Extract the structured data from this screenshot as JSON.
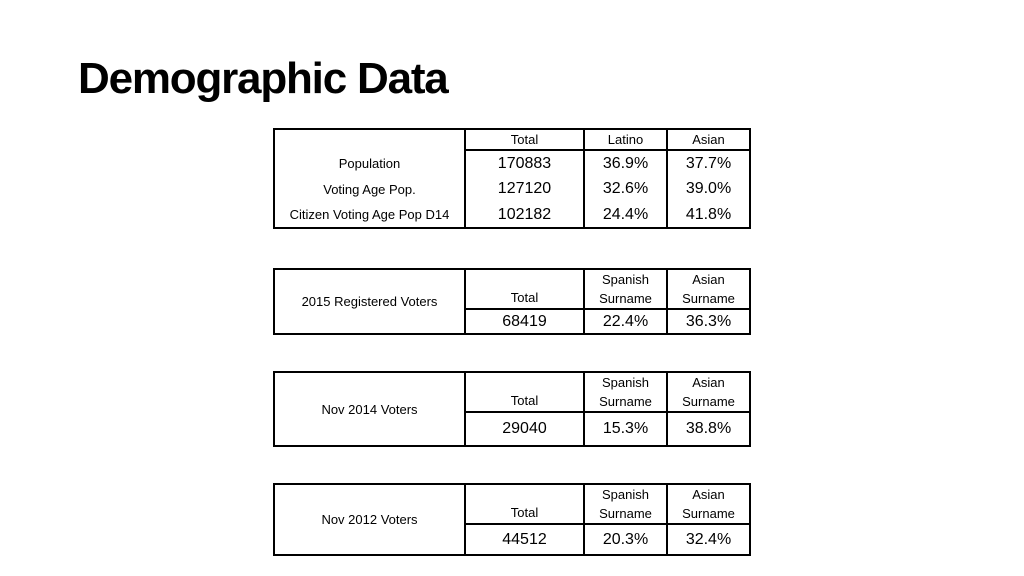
{
  "title": "Demographic Data",
  "table1": {
    "headers": [
      "Total",
      "Latino",
      "Asian"
    ],
    "rows": [
      {
        "label": "Population",
        "total": "170883",
        "latino": "36.9%",
        "asian": "37.7%"
      },
      {
        "label": "Voting Age Pop.",
        "total": "127120",
        "latino": "32.6%",
        "asian": "39.0%"
      },
      {
        "label": "Citizen Voting Age Pop D14",
        "total": "102182",
        "latino": "24.4%",
        "asian": "41.8%"
      }
    ]
  },
  "voter_tables": [
    {
      "label": "2015 Registered Voters",
      "total_header": "Total",
      "spanish_header": [
        "Spanish",
        "Surname"
      ],
      "asian_header": [
        "Asian",
        "Surname"
      ],
      "total": "68419",
      "spanish": "22.4%",
      "asian": "36.3%"
    },
    {
      "label": "Nov 2014 Voters",
      "total_header": "Total",
      "spanish_header": [
        "Spanish",
        "Surname"
      ],
      "asian_header": [
        "Asian",
        "Surname"
      ],
      "total": "29040",
      "spanish": "15.3%",
      "asian": "38.8%"
    },
    {
      "label": "Nov 2012 Voters",
      "total_header": "Total",
      "spanish_header": [
        "Spanish",
        "Surname"
      ],
      "asian_header": [
        "Asian",
        "Surname"
      ],
      "total": "44512",
      "spanish": "20.3%",
      "asian": "32.4%"
    }
  ]
}
